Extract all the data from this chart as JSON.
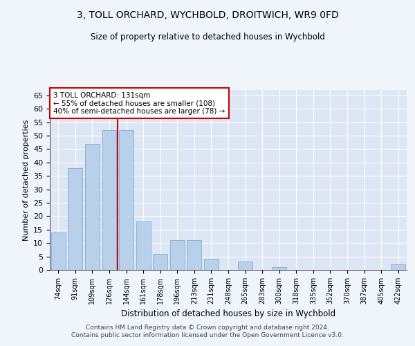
{
  "title1": "3, TOLL ORCHARD, WYCHBOLD, DROITWICH, WR9 0FD",
  "title2": "Size of property relative to detached houses in Wychbold",
  "xlabel": "Distribution of detached houses by size in Wychbold",
  "ylabel": "Number of detached properties",
  "categories": [
    "74sqm",
    "91sqm",
    "109sqm",
    "126sqm",
    "144sqm",
    "161sqm",
    "178sqm",
    "196sqm",
    "213sqm",
    "231sqm",
    "248sqm",
    "265sqm",
    "283sqm",
    "300sqm",
    "318sqm",
    "335sqm",
    "352sqm",
    "370sqm",
    "387sqm",
    "405sqm",
    "422sqm"
  ],
  "values": [
    14,
    38,
    47,
    52,
    52,
    18,
    6,
    11,
    11,
    4,
    0,
    3,
    0,
    1,
    0,
    0,
    0,
    0,
    0,
    0,
    2
  ],
  "bar_color": "#b8d0ea",
  "bar_edge_color": "#7aafd4",
  "background_color": "#dce6f5",
  "grid_color": "#ffffff",
  "annotation_text": "3 TOLL ORCHARD: 131sqm\n← 55% of detached houses are smaller (108)\n40% of semi-detached houses are larger (78) →",
  "annotation_box_color": "#ffffff",
  "annotation_box_edge_color": "#cc0000",
  "marker_line_color": "#cc0000",
  "ylim": [
    0,
    67
  ],
  "yticks": [
    0,
    5,
    10,
    15,
    20,
    25,
    30,
    35,
    40,
    45,
    50,
    55,
    60,
    65
  ],
  "footer1": "Contains HM Land Registry data © Crown copyright and database right 2024.",
  "footer2": "Contains public sector information licensed under the Open Government Licence v3.0.",
  "fig_bg": "#f0f4fb"
}
